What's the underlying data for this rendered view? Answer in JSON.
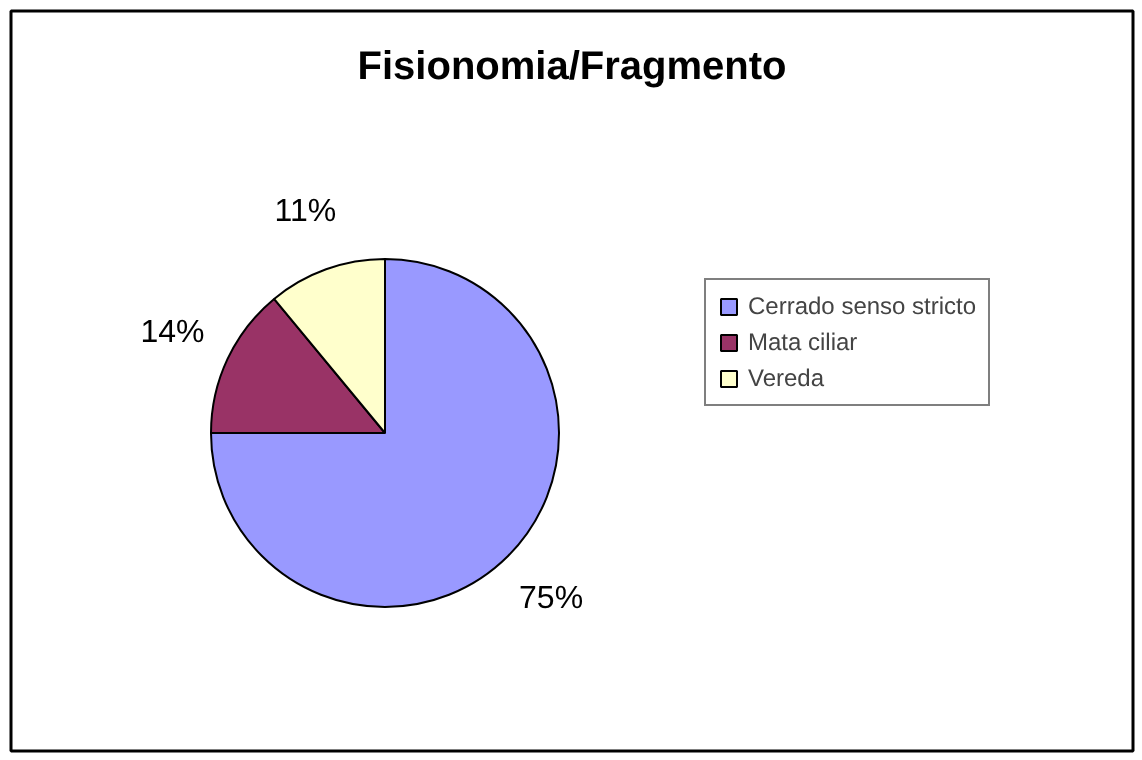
{
  "chart_data": {
    "type": "pie",
    "title": "Fisionomia/Fragmento",
    "categories": [
      "Cerrado senso stricto",
      "Mata ciliar",
      "Vereda"
    ],
    "values": [
      75,
      14,
      11
    ],
    "colors": [
      "#9999ff",
      "#993366",
      "#ffffcc"
    ],
    "value_labels": [
      "75%",
      "14%",
      "11%"
    ],
    "legend": "right"
  }
}
